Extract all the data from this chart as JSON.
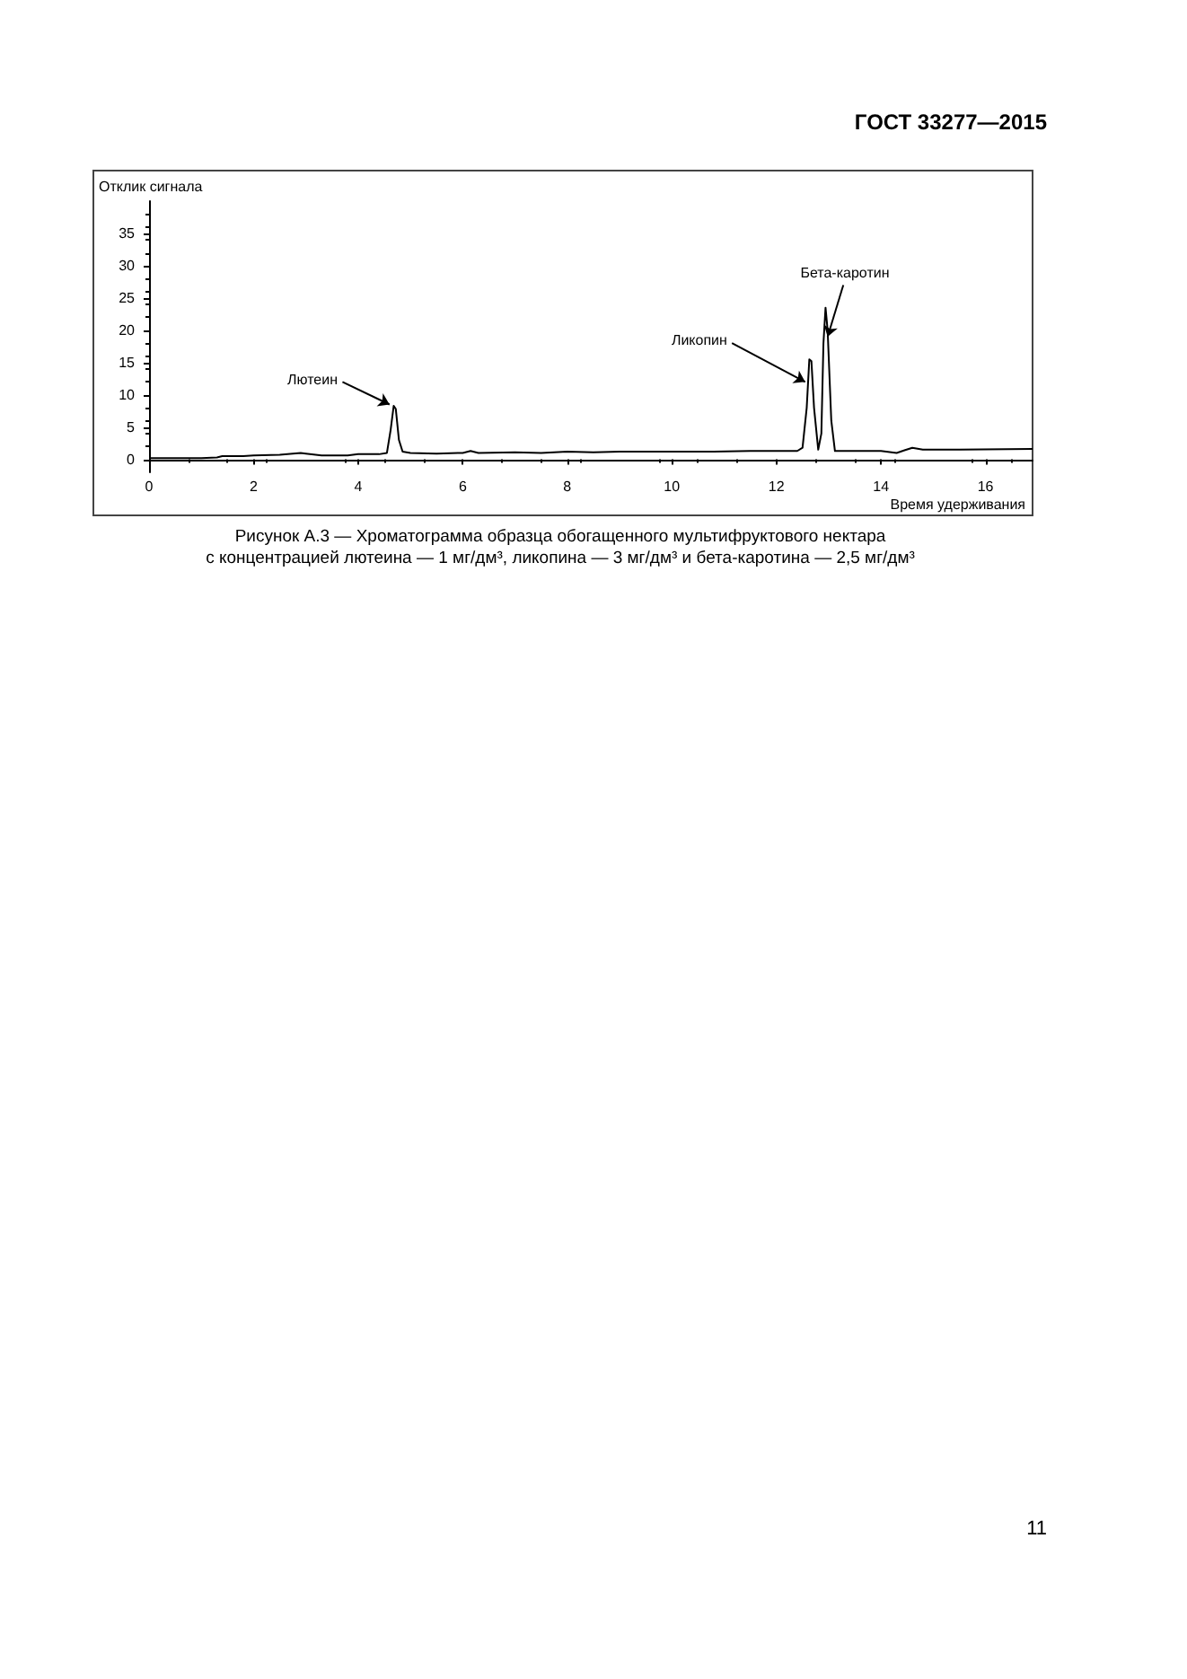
{
  "chart_data": {
    "type": "line",
    "xlabel": "Время удерживания",
    "ylabel": "Отклик сигнала",
    "annotations": [
      "ГОСТ 33277—2015",
      "Рисунок А.3 — Хроматограмма образца обогащенного мультифруктового нектара\nс концентрацией лютеина — 1 мг/дм³, ликопина — 3 мг/дм³ и бета-каротина — 2,5 мг/дм³",
      "11",
      {
        "text": "Лютеин",
        "x": 4.6,
        "y": 8.5
      },
      {
        "text": "Ликопин",
        "x": 12.55,
        "y": 12
      },
      {
        "text": "Бета-каротин",
        "x": 12.98,
        "y": 19
      }
    ],
    "x": [
      0,
      0.5,
      1.0,
      1.3,
      1.4,
      1.8,
      2.0,
      2.5,
      2.9,
      3.0,
      3.3,
      3.8,
      4.0,
      4.4,
      4.55,
      4.62,
      4.68,
      4.72,
      4.78,
      4.85,
      5.0,
      5.5,
      6.0,
      6.15,
      6.3,
      7.0,
      7.5,
      8.0,
      8.5,
      9.0,
      10.0,
      10.8,
      11.5,
      12.4,
      12.5,
      12.58,
      12.63,
      12.67,
      12.72,
      12.8,
      12.86,
      12.9,
      12.94,
      12.98,
      13.05,
      13.12,
      13.3,
      14.0,
      14.3,
      14.45,
      14.6,
      14.8,
      15.5,
      16.9
    ],
    "values": [
      0.2,
      0.2,
      0.2,
      0.3,
      0.5,
      0.5,
      0.6,
      0.7,
      1.0,
      0.9,
      0.6,
      0.6,
      0.8,
      0.8,
      1.0,
      4.5,
      8.3,
      7.8,
      3.0,
      1.2,
      1.0,
      0.9,
      1.0,
      1.3,
      1.0,
      1.1,
      1.0,
      1.2,
      1.1,
      1.2,
      1.2,
      1.2,
      1.3,
      1.3,
      1.8,
      8,
      15.5,
      15.2,
      8,
      1.5,
      4,
      18,
      23.5,
      20,
      6,
      1.3,
      1.3,
      1.3,
      1.0,
      1.4,
      1.8,
      1.5,
      1.5,
      1.6
    ],
    "color": "#000000",
    "marker": "none",
    "grid": false,
    "xlim": [
      0,
      16.9
    ],
    "xticks": [
      0,
      2,
      4,
      6,
      8,
      10,
      12,
      14,
      16
    ],
    "ylim": [
      -2,
      40
    ],
    "yticks": [
      0,
      5,
      10,
      15,
      20,
      25,
      30,
      35
    ]
  }
}
